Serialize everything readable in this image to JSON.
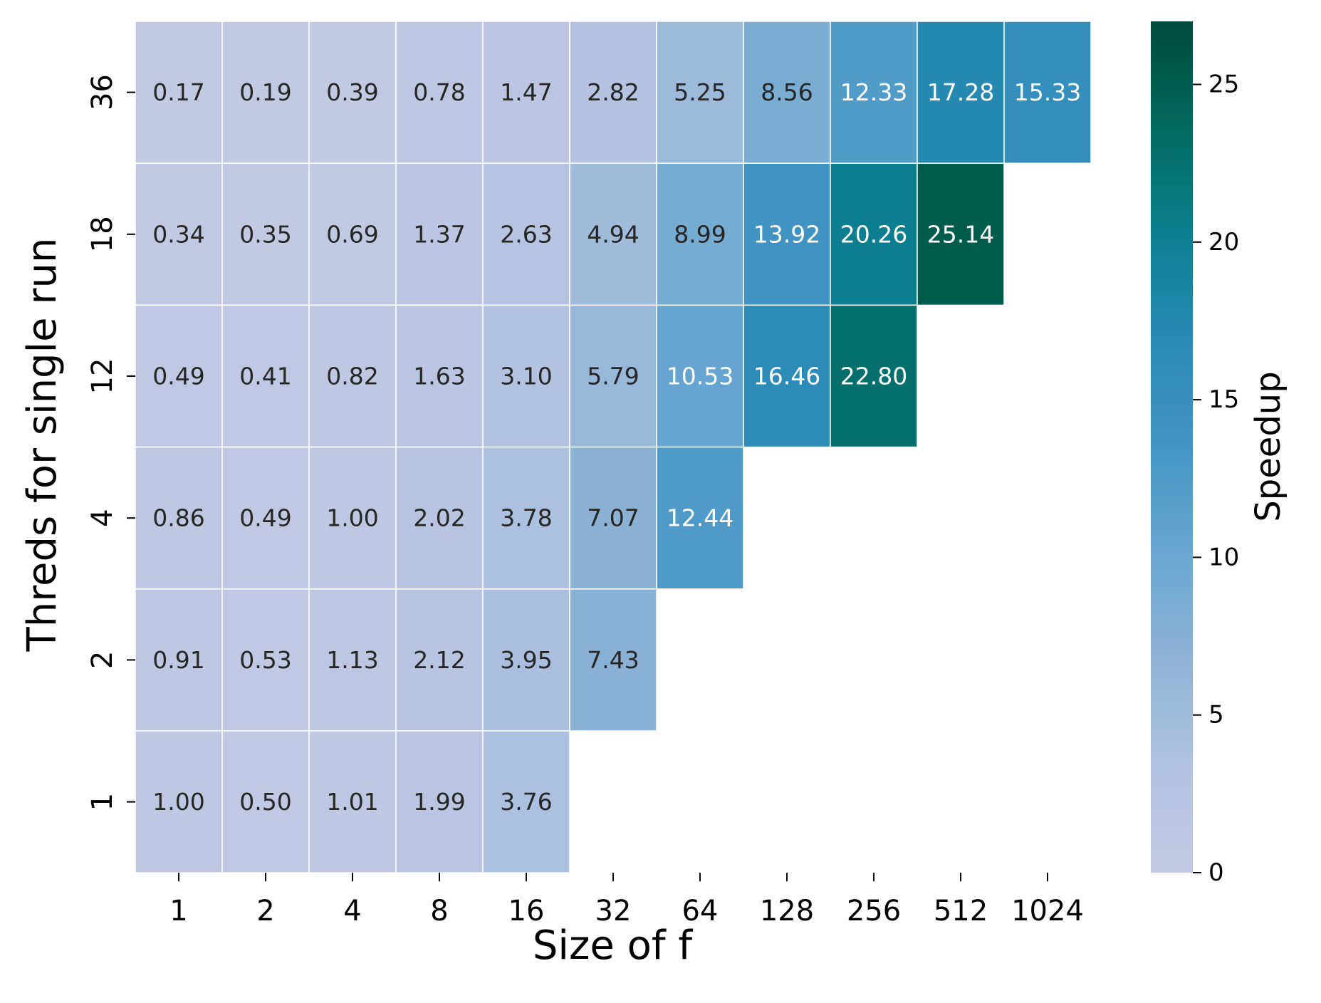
{
  "chart_data": {
    "type": "heatmap",
    "title": "",
    "xlabel": "Size of f",
    "ylabel": "Threds for single run",
    "x_categories": [
      "1",
      "2",
      "4",
      "8",
      "16",
      "32",
      "64",
      "128",
      "256",
      "512",
      "1024"
    ],
    "y_categories": [
      "36",
      "18",
      "12",
      "4",
      "2",
      "1"
    ],
    "values": [
      [
        0.17,
        0.19,
        0.39,
        0.78,
        1.47,
        2.82,
        5.25,
        8.56,
        12.33,
        17.28,
        15.33
      ],
      [
        0.34,
        0.35,
        0.69,
        1.37,
        2.63,
        4.94,
        8.99,
        13.92,
        20.26,
        25.14,
        null
      ],
      [
        0.49,
        0.41,
        0.82,
        1.63,
        3.1,
        5.79,
        10.53,
        16.46,
        22.8,
        null,
        null
      ],
      [
        0.86,
        0.49,
        1.0,
        2.02,
        3.78,
        7.07,
        12.44,
        null,
        null,
        null,
        null
      ],
      [
        0.91,
        0.53,
        1.13,
        2.12,
        3.95,
        7.43,
        null,
        null,
        null,
        null,
        null
      ],
      [
        1.0,
        0.5,
        1.01,
        1.99,
        3.76,
        null,
        null,
        null,
        null,
        null,
        null
      ]
    ],
    "colorbar": {
      "label": "Speedup",
      "range": [
        0,
        27
      ],
      "ticks": [
        0,
        5,
        10,
        15,
        20,
        25
      ],
      "colormap": "PuBuGn",
      "stops": [
        "#c5c9e3",
        "#b0c2e0",
        "#8fb3d6",
        "#6aa7d0",
        "#4394c5",
        "#2a8ab6",
        "#0b7f8f",
        "#036a5f",
        "#004a3a"
      ]
    },
    "annotation_colors": {
      "dark": "#262626",
      "light": "#ffffff"
    },
    "grid": false
  }
}
